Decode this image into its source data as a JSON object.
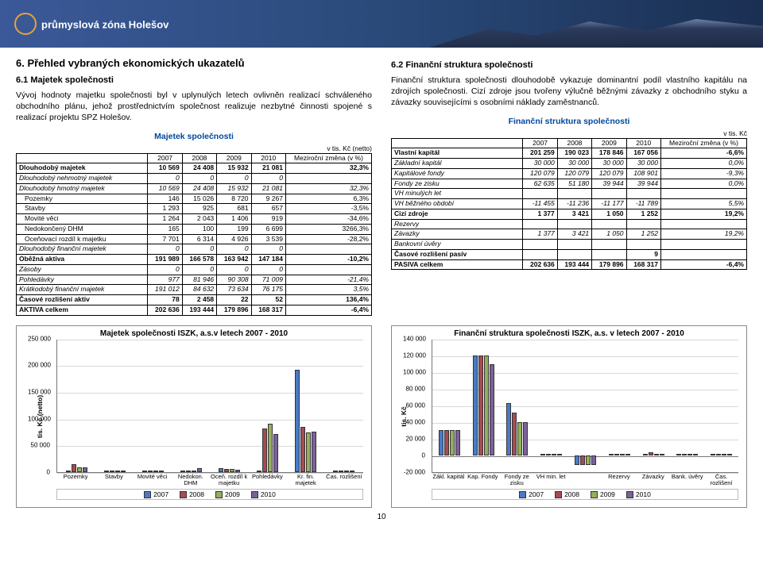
{
  "banner": {
    "logo_text": "průmyslová zóna Holešov"
  },
  "page_number": "10",
  "left": {
    "h2": "6.  Přehled vybraných ekonomických ukazatelů",
    "h3": "6.1 Majetek společnosti",
    "para": "Vývoj hodnoty majetku společnosti byl v uplynulých letech ovlivněn realizací schváleného obchodního plánu, jehož prostřednictvím společnost realizuje nezbytné činnosti spojené s realizací projektu SPZ Holešov.",
    "table_caption": "Majetek společnosti",
    "table_unit": "v tis. Kč (netto)",
    "headers": [
      "",
      "2007",
      "2008",
      "2009",
      "2010",
      "Meziroční změna (v %)"
    ],
    "rows": [
      {
        "bold": true,
        "lbl": "Dlouhodobý majetek",
        "c": [
          "10 569",
          "24 408",
          "15 932",
          "21 081",
          "32,3%"
        ]
      },
      {
        "ital": true,
        "lbl": "Dlouhodobý nehmotný majetek",
        "c": [
          "0",
          "0",
          "0",
          "0",
          ""
        ]
      },
      {
        "ital": true,
        "lbl": "Dlouhodobý hmotný majetek",
        "c": [
          "10 569",
          "24 408",
          "15 932",
          "21 081",
          "32,3%"
        ]
      },
      {
        "indent": true,
        "lbl": "Pozemky",
        "c": [
          "146",
          "15 026",
          "8 720",
          "9 267",
          "6,3%"
        ]
      },
      {
        "indent": true,
        "lbl": "Stavby",
        "c": [
          "1 293",
          "925",
          "681",
          "657",
          "-3,5%"
        ]
      },
      {
        "indent": true,
        "lbl": "Movité věci",
        "c": [
          "1 264",
          "2 043",
          "1 406",
          "919",
          "-34,6%"
        ]
      },
      {
        "indent": true,
        "lbl": "Nedokončený DHM",
        "c": [
          "165",
          "100",
          "199",
          "6 699",
          "3266,3%"
        ]
      },
      {
        "indent": true,
        "lbl": "Oceňovací rozdíl k majetku",
        "c": [
          "7 701",
          "6 314",
          "4 926",
          "3 539",
          "-28,2%"
        ]
      },
      {
        "ital": true,
        "lbl": "Dlouhodobý finanční majetek",
        "c": [
          "0",
          "0",
          "0",
          "0",
          ""
        ]
      },
      {
        "bold": true,
        "lbl": "Oběžná aktiva",
        "c": [
          "191 989",
          "166 578",
          "163 942",
          "147 184",
          "-10,2%"
        ]
      },
      {
        "ital": true,
        "lbl": "Zásoby",
        "c": [
          "0",
          "0",
          "0",
          "0",
          ""
        ]
      },
      {
        "ital": true,
        "lbl": "Pohledávky",
        "c": [
          "977",
          "81 946",
          "90 308",
          "71 009",
          "-21,4%"
        ]
      },
      {
        "ital": true,
        "lbl": "Krátkodobý finanční majetek",
        "c": [
          "191 012",
          "84 632",
          "73 634",
          "76 175",
          "3,5%"
        ]
      },
      {
        "bold": true,
        "lbl": "Časové rozlišení aktiv",
        "c": [
          "78",
          "2 458",
          "22",
          "52",
          "136,4%"
        ]
      },
      {
        "bold": true,
        "lbl": "AKTIVA celkem",
        "c": [
          "202 636",
          "193 444",
          "179 896",
          "168 317",
          "-6,4%"
        ]
      }
    ]
  },
  "right": {
    "h3": "6.2 Finanční struktura společnosti",
    "para": "Finanční struktura společnosti dlouhodobě vykazuje dominantní podíl vlastního kapitálu na zdrojích společnosti. Cizí zdroje jsou tvořeny výlučně běžnými závazky z obchodního styku a závazky souvisejícími s osobními náklady zaměstnanců.",
    "table_caption": "Finanční struktura společnosti",
    "table_unit": "v tis. Kč",
    "headers": [
      "",
      "2007",
      "2008",
      "2009",
      "2010",
      "Meziroční změna (v %)"
    ],
    "rows": [
      {
        "bold": true,
        "lbl": "Vlastní kapitál",
        "c": [
          "201 259",
          "190 023",
          "178 846",
          "167 056",
          "-6,6%"
        ]
      },
      {
        "ital": true,
        "lbl": "Základní kapitál",
        "c": [
          "30 000",
          "30 000",
          "30 000",
          "30 000",
          "0,0%"
        ]
      },
      {
        "ital": true,
        "lbl": "Kapitálové fondy",
        "c": [
          "120 079",
          "120 079",
          "120 079",
          "108 901",
          "-9,3%"
        ]
      },
      {
        "ital": true,
        "lbl": "Fondy ze zisku",
        "c": [
          "62 635",
          "51 180",
          "39 944",
          "39 944",
          "0,0%"
        ]
      },
      {
        "ital": true,
        "lbl": "VH minulých let",
        "c": [
          "",
          "",
          "",
          "",
          ""
        ]
      },
      {
        "ital": true,
        "lbl": "VH běžného období",
        "c": [
          "-11 455",
          "-11 236",
          "-11 177",
          "-11 789",
          "5,5%"
        ]
      },
      {
        "bold": true,
        "lbl": "Cizí zdroje",
        "c": [
          "1 377",
          "3 421",
          "1 050",
          "1 252",
          "19,2%"
        ]
      },
      {
        "ital": true,
        "lbl": "Rezervy",
        "c": [
          "",
          "",
          "",
          "",
          ""
        ]
      },
      {
        "ital": true,
        "lbl": "Závazky",
        "c": [
          "1 377",
          "3 421",
          "1 050",
          "1 252",
          "19,2%"
        ]
      },
      {
        "ital": true,
        "lbl": "Bankovní úvěry",
        "c": [
          "",
          "",
          "",
          "",
          ""
        ]
      },
      {
        "bold": true,
        "lbl": "Časové rozlišení pasív",
        "c": [
          "",
          "",
          "",
          "9",
          ""
        ]
      },
      {
        "bold": true,
        "lbl": "PASIVA celkem",
        "c": [
          "202 636",
          "193 444",
          "179 896",
          "168 317",
          "-6,4%"
        ]
      }
    ]
  },
  "chart_left": {
    "title": "Majetek společnosti ISZK, a.s.v letech 2007 - 2010",
    "ylabel": "tis. Kč (netto)",
    "ymin": 0,
    "ymax": 250000,
    "ystep": 50000,
    "categories": [
      "Pozemky",
      "Stavby",
      "Movité věci",
      "Nedokon. DHM",
      "Oceň. rozdíl k majetku",
      "Pohledávky",
      "Kr. fin. majetek",
      "Čas. rozlišení"
    ],
    "series": [
      {
        "name": "2007",
        "color": "#4a7ac7",
        "values": [
          146,
          1293,
          1264,
          165,
          7701,
          977,
          191012,
          78
        ]
      },
      {
        "name": "2008",
        "color": "#a84a52",
        "values": [
          15026,
          925,
          2043,
          100,
          6314,
          81946,
          84632,
          2458
        ]
      },
      {
        "name": "2009",
        "color": "#94b05a",
        "values": [
          8720,
          681,
          1406,
          199,
          4926,
          90308,
          73634,
          22
        ]
      },
      {
        "name": "2010",
        "color": "#7a629a",
        "values": [
          9267,
          657,
          919,
          6699,
          3539,
          71009,
          76175,
          52
        ]
      }
    ]
  },
  "chart_right": {
    "title": "Finanční struktura společnosti ISZK, a.s. v letech 2007 - 2010",
    "ylabel": "tis. Kč",
    "ymin": -20000,
    "ymax": 140000,
    "ystep": 20000,
    "categories": [
      "Zákl. kapitál",
      "Kap. Fondy",
      "Fondy ze zisku",
      "VH min. let",
      "",
      "Rezervy",
      "Závazky",
      "Bank. úvěry",
      "Čas. rozlišení"
    ],
    "series": [
      {
        "name": "2007",
        "color": "#4a7ac7",
        "values": [
          30000,
          120079,
          62635,
          0,
          -11455,
          0,
          1377,
          0,
          0
        ]
      },
      {
        "name": "2008",
        "color": "#a84a52",
        "values": [
          30000,
          120079,
          51180,
          0,
          -11236,
          0,
          3421,
          0,
          0
        ]
      },
      {
        "name": "2009",
        "color": "#94b05a",
        "values": [
          30000,
          120079,
          39944,
          0,
          -11177,
          0,
          1050,
          0,
          0
        ]
      },
      {
        "name": "2010",
        "color": "#7a629a",
        "values": [
          30000,
          108901,
          39944,
          0,
          -11789,
          0,
          1252,
          0,
          9
        ]
      }
    ]
  }
}
